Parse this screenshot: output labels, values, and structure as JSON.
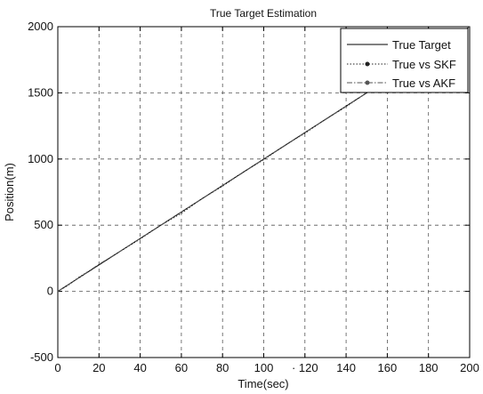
{
  "chart_data": {
    "type": "line",
    "title": "True Target  Estimation",
    "xlabel": "Time(sec)",
    "ylabel": "Position(m)",
    "xlim": [
      0,
      200
    ],
    "ylim": [
      -500,
      2000
    ],
    "xticks": [
      0,
      20,
      40,
      60,
      80,
      100,
      120,
      140,
      160,
      180,
      200
    ],
    "yticks": [
      -500,
      0,
      500,
      1000,
      1500,
      2000
    ],
    "xtick_labels": [
      "0",
      "20",
      "40",
      "60",
      "80",
      "100",
      "· 120",
      "140",
      "160",
      "180",
      "200"
    ],
    "ytick_labels": [
      "-500",
      "0",
      "500",
      "1000",
      "1500",
      "2000"
    ],
    "grid": true,
    "legend_position": "top-right",
    "series": [
      {
        "name": "True Target",
        "color": "#000000",
        "style": "solid",
        "x": [
          0,
          200
        ],
        "y": [
          0,
          2000
        ]
      },
      {
        "name": "True vs SKF",
        "color": "#222222",
        "style": "dotted",
        "marker": "dot",
        "x": [
          0,
          5,
          10,
          20,
          30,
          40,
          50,
          60,
          70,
          80,
          90,
          100,
          110,
          120,
          130,
          140,
          150,
          160,
          170,
          180,
          190,
          200
        ],
        "y": [
          0,
          45,
          105,
          200,
          300,
          395,
          500,
          590,
          700,
          795,
          900,
          995,
          1100,
          1195,
          1300,
          1395,
          1500,
          1600,
          1700,
          1800,
          1900,
          2000
        ]
      },
      {
        "name": "True vs AKF",
        "color": "#555555",
        "style": "dashdot",
        "marker": "dot",
        "x": [
          0,
          5,
          10,
          20,
          30,
          40,
          50,
          60,
          70,
          80,
          90,
          100,
          110,
          120,
          130,
          140,
          150,
          160,
          170,
          180,
          190,
          200
        ],
        "y": [
          0,
          50,
          100,
          205,
          300,
          400,
          498,
          600,
          698,
          800,
          898,
          1000,
          1098,
          1200,
          1298,
          1400,
          1500,
          1600,
          1700,
          1800,
          1900,
          2000
        ]
      }
    ]
  }
}
